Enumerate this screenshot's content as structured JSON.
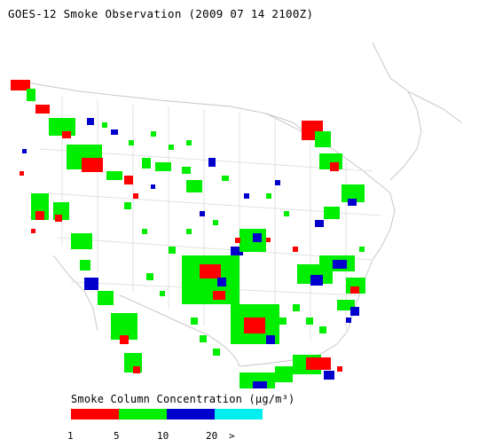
{
  "title": "GOES-12 Smoke Observation (2009 07 14  2100Z)",
  "legend": {
    "title": "Smoke Column Concentration (µg/m³)",
    "ticks": [
      "1",
      "5",
      "10",
      "20",
      ">"
    ],
    "classes": [
      {
        "label": "1-5",
        "color": "#ff0000"
      },
      {
        "label": "5-10",
        "color": "#00ee00"
      },
      {
        "label": "10-20",
        "color": "#0000cc"
      },
      {
        "label": "20+",
        "color": "#00eeee"
      }
    ]
  },
  "map": {
    "region": "continental United States",
    "base_color": "#ffffff",
    "boundary_color": "#c8c8c8"
  }
}
